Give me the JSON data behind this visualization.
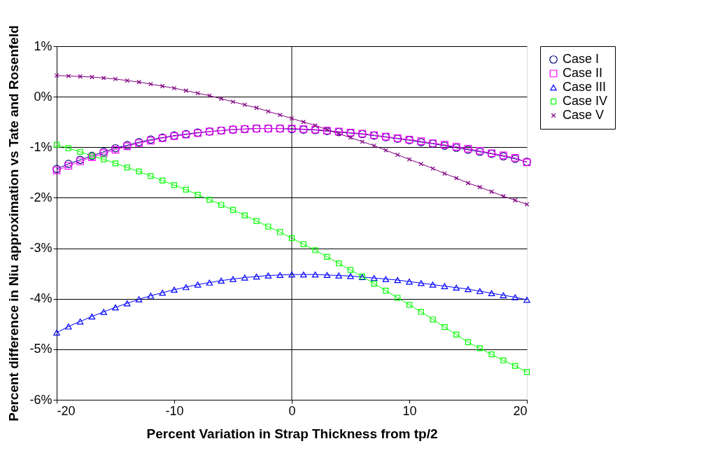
{
  "chart_data": {
    "type": "line",
    "xlabel": "Percent Variation in Strap Thickness from tp/2",
    "ylabel": "Percent difference in Niu approximation vs Tate and Rosenfeld",
    "x": [
      -20,
      -19,
      -18,
      -17,
      -16,
      -15,
      -14,
      -13,
      -12,
      -11,
      -10,
      -9,
      -8,
      -7,
      -6,
      -5,
      -4,
      -3,
      -2,
      -1,
      0,
      1,
      2,
      3,
      4,
      5,
      6,
      7,
      8,
      9,
      10,
      11,
      12,
      13,
      14,
      15,
      16,
      17,
      18,
      19,
      20
    ],
    "series": [
      {
        "name": "Case I",
        "color": "#000080",
        "marker": "circle",
        "values": [
          -1.43,
          -1.33,
          -1.25,
          -1.17,
          -1.09,
          -1.02,
          -0.96,
          -0.9,
          -0.85,
          -0.81,
          -0.77,
          -0.74,
          -0.71,
          -0.69,
          -0.67,
          -0.65,
          -0.64,
          -0.63,
          -0.63,
          -0.63,
          -0.64,
          -0.65,
          -0.66,
          -0.68,
          -0.7,
          -0.72,
          -0.74,
          -0.77,
          -0.8,
          -0.83,
          -0.86,
          -0.9,
          -0.93,
          -0.97,
          -1.01,
          -1.05,
          -1.09,
          -1.13,
          -1.18,
          -1.23,
          -1.29
        ]
      },
      {
        "name": "Case II",
        "color": "#ff00ff",
        "marker": "square",
        "values": [
          -1.46,
          -1.37,
          -1.28,
          -1.2,
          -1.12,
          -1.05,
          -0.98,
          -0.92,
          -0.87,
          -0.82,
          -0.78,
          -0.75,
          -0.72,
          -0.69,
          -0.67,
          -0.65,
          -0.64,
          -0.63,
          -0.63,
          -0.63,
          -0.63,
          -0.64,
          -0.65,
          -0.67,
          -0.69,
          -0.71,
          -0.73,
          -0.76,
          -0.79,
          -0.82,
          -0.85,
          -0.88,
          -0.92,
          -0.95,
          -0.99,
          -1.03,
          -1.07,
          -1.12,
          -1.16,
          -1.21,
          -1.3
        ]
      },
      {
        "name": "Case III",
        "color": "#0000ff",
        "marker": "triangle",
        "values": [
          -4.67,
          -4.55,
          -4.45,
          -4.35,
          -4.26,
          -4.17,
          -4.09,
          -4.01,
          -3.94,
          -3.88,
          -3.82,
          -3.77,
          -3.72,
          -3.68,
          -3.64,
          -3.61,
          -3.58,
          -3.56,
          -3.54,
          -3.53,
          -3.52,
          -3.52,
          -3.52,
          -3.53,
          -3.54,
          -3.55,
          -3.57,
          -3.59,
          -3.61,
          -3.63,
          -3.66,
          -3.69,
          -3.72,
          -3.75,
          -3.78,
          -3.81,
          -3.85,
          -3.89,
          -3.93,
          -3.97,
          -4.02
        ]
      },
      {
        "name": "Case IV",
        "color": "#00ff00",
        "marker": "square",
        "values": [
          -0.95,
          -1.02,
          -1.09,
          -1.17,
          -1.24,
          -1.32,
          -1.4,
          -1.48,
          -1.57,
          -1.66,
          -1.75,
          -1.84,
          -1.94,
          -2.04,
          -2.14,
          -2.24,
          -2.35,
          -2.46,
          -2.57,
          -2.68,
          -2.8,
          -2.92,
          -3.04,
          -3.17,
          -3.3,
          -3.43,
          -3.56,
          -3.7,
          -3.84,
          -3.98,
          -4.12,
          -4.26,
          -4.41,
          -4.56,
          -4.71,
          -4.86,
          -4.98,
          -5.1,
          -5.22,
          -5.33,
          -5.45
        ]
      },
      {
        "name": "Case V",
        "color": "#800080",
        "marker": "cross",
        "values": [
          0.42,
          0.41,
          0.4,
          0.39,
          0.37,
          0.35,
          0.32,
          0.29,
          0.25,
          0.21,
          0.17,
          0.12,
          0.07,
          0.02,
          -0.04,
          -0.1,
          -0.16,
          -0.22,
          -0.29,
          -0.36,
          -0.43,
          -0.5,
          -0.57,
          -0.65,
          -0.73,
          -0.81,
          -0.89,
          -0.97,
          -1.06,
          -1.15,
          -1.24,
          -1.33,
          -1.42,
          -1.52,
          -1.61,
          -1.71,
          -1.79,
          -1.88,
          -1.97,
          -2.05,
          -2.13
        ]
      }
    ],
    "xlim": [
      -20,
      20
    ],
    "xticks": [
      -20,
      -10,
      0,
      10,
      20
    ],
    "ylim": [
      -6,
      1
    ],
    "yticks": [
      {
        "value": -6,
        "label": "-6%"
      },
      {
        "value": -5,
        "label": "-5%"
      },
      {
        "value": -4,
        "label": "-4%"
      },
      {
        "value": -3,
        "label": "-3%"
      },
      {
        "value": -2,
        "label": "-2%"
      },
      {
        "value": -1,
        "label": "-1%"
      },
      {
        "value": 0,
        "label": "0%"
      },
      {
        "value": 1,
        "label": "1%"
      }
    ],
    "ref_lines": [
      {
        "axis": "x",
        "value": 0,
        "color": "#000000"
      }
    ],
    "grid": "y",
    "legend": "right",
    "line_style": "solid"
  }
}
